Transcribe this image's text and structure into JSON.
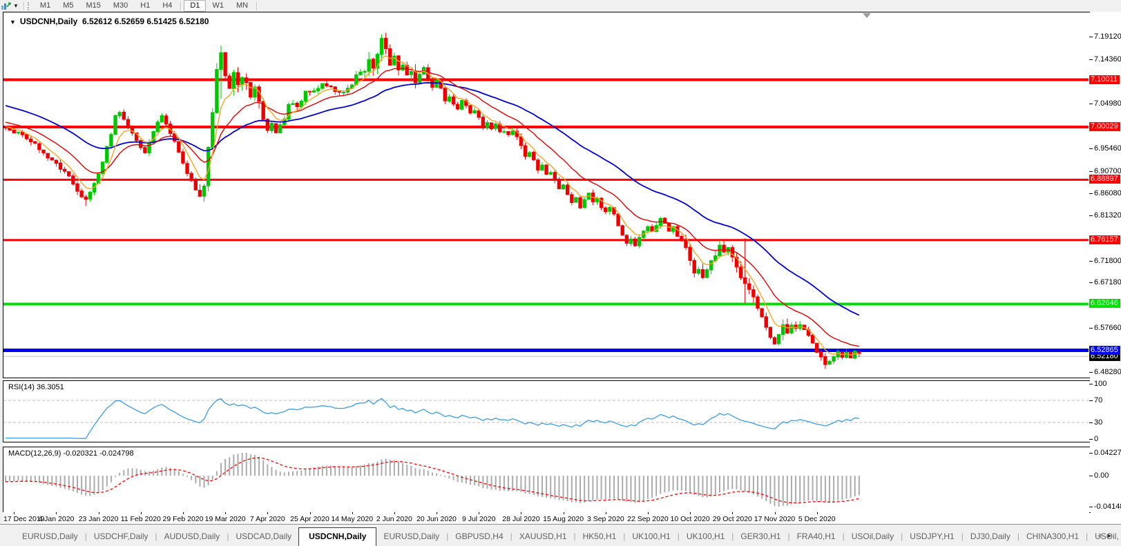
{
  "toolbar": {
    "periods": [
      "M1",
      "M5",
      "M15",
      "M30",
      "H1",
      "H4",
      "D1",
      "W1",
      "MN"
    ],
    "active_period": "D1",
    "left_icon": "chart-periods-icon"
  },
  "chart": {
    "title_symbol": "USDCNH,Daily",
    "title_ohlc": "6.52612 6.52659 6.51425 6.52180",
    "price_axis_ticks": [
      "7.19120",
      "7.14360",
      "7.04980",
      "6.95460",
      "6.90700",
      "6.86080",
      "6.81320",
      "6.71800",
      "6.67180",
      "6.57660",
      "6.48280"
    ],
    "hlines": [
      {
        "value": 7.10011,
        "label": "7.10011",
        "color": "#ff0000",
        "width": 4
      },
      {
        "value": 7.00029,
        "label": "7.00029",
        "color": "#ff0000",
        "width": 4
      },
      {
        "value": 6.88897,
        "label": "6.88897",
        "color": "#ff0000",
        "width": 3
      },
      {
        "value": 6.76157,
        "label": "6.76157",
        "color": "#ff0000",
        "width": 3
      },
      {
        "value": 6.62646,
        "label": "6.62646",
        "color": "#00dd00",
        "width": 4
      },
      {
        "value": 6.52865,
        "label": "6.52865",
        "color": "#0000f0",
        "width": 5
      }
    ],
    "current_price": {
      "value": 6.5218,
      "label": "6.52180",
      "line_color": "#c0c0c0",
      "label_bg": "#000000"
    },
    "colors": {
      "candle_up": "#00c800",
      "candle_down": "#ec0000",
      "ma_fast": "#f5a623",
      "ma_mid": "#e00000",
      "ma_slow": "#0000cd"
    }
  },
  "rsi": {
    "label": "RSI(14) 36.3051",
    "value": 36.3051,
    "axis_ticks": [
      "100",
      "70",
      "30",
      "0"
    ],
    "axis_values": [
      100,
      70,
      30,
      0
    ],
    "dashed_levels": [
      70,
      30
    ],
    "line_color": "#3c9be0"
  },
  "macd": {
    "label": "MACD(12,26,9) -0.020321 -0.024798",
    "main_value": -0.020321,
    "signal_value": -0.024798,
    "axis_ticks": [
      "0.042275",
      "0.00",
      "-0.04148"
    ],
    "histogram_color": "#ababab",
    "signal_color": "#ff0000"
  },
  "dates": [
    "17 Dec 2019",
    "4 Jan 2020",
    "23 Jan 2020",
    "11 Feb 2020",
    "29 Feb 2020",
    "19 Mar 2020",
    "7 Apr 2020",
    "25 Apr 2020",
    "14 May 2020",
    "2 Jun 2020",
    "20 Jun 2020",
    "9 Jul 2020",
    "28 Jul 2020",
    "15 Aug 2020",
    "3 Sep 2020",
    "22 Sep 2020",
    "10 Oct 2020",
    "29 Oct 2020",
    "17 Nov 2020",
    "5 Dec 2020"
  ],
  "tabs": {
    "items": [
      "EURUSD,Daily",
      "USDCHF,Daily",
      "AUDUSD,Daily",
      "USDCAD,Daily",
      "USDCNH,Daily",
      "EURUSD,Daily",
      "GBPUSD,H4",
      "XAUUSD,H1",
      "HK50,H1",
      "UK100,H1",
      "UK100,H1",
      "GER30,H1",
      "FRA40,H1",
      "USOil,Daily",
      "USDJPY,H1",
      "DJ30,Daily",
      "CHINA300,H1",
      "USOil,"
    ],
    "active_index": 4
  },
  "chart_data": {
    "type": "candlestick",
    "symbol": "USDCNH",
    "timeframe": "Daily",
    "last_bar": {
      "open": 6.52612,
      "high": 6.52659,
      "low": 6.51425,
      "close": 6.5218
    },
    "bars": 203,
    "y_axis": {
      "top": 7.1912,
      "bottom": 6.4828
    },
    "close_anchors": [
      [
        0,
        6.998
      ],
      [
        2,
        6.992
      ],
      [
        4,
        6.98
      ],
      [
        6,
        6.972
      ],
      [
        8,
        6.955
      ],
      [
        10,
        6.938
      ],
      [
        12,
        6.92
      ],
      [
        14,
        6.905
      ],
      [
        16,
        6.88
      ],
      [
        18,
        6.855
      ],
      [
        19,
        6.843
      ],
      [
        20,
        6.86
      ],
      [
        22,
        6.9
      ],
      [
        24,
        6.955
      ],
      [
        26,
        7.02
      ],
      [
        27,
        7.028
      ],
      [
        29,
        7.0
      ],
      [
        31,
        6.968
      ],
      [
        33,
        6.948
      ],
      [
        35,
        6.995
      ],
      [
        37,
        7.028
      ],
      [
        39,
        6.988
      ],
      [
        41,
        6.948
      ],
      [
        43,
        6.905
      ],
      [
        45,
        6.868
      ],
      [
        46,
        6.853
      ],
      [
        47,
        6.88
      ],
      [
        48,
        6.96
      ],
      [
        49,
        7.03
      ],
      [
        50,
        7.12
      ],
      [
        51,
        7.158
      ],
      [
        52,
        7.108
      ],
      [
        53,
        7.085
      ],
      [
        54,
        7.118
      ],
      [
        55,
        7.09
      ],
      [
        56,
        7.108
      ],
      [
        57,
        7.093
      ],
      [
        58,
        7.06
      ],
      [
        59,
        7.083
      ],
      [
        60,
        7.053
      ],
      [
        61,
        7.02
      ],
      [
        62,
        6.995
      ],
      [
        63,
        7.01
      ],
      [
        64,
        6.985
      ],
      [
        66,
        7.02
      ],
      [
        67,
        7.048
      ],
      [
        69,
        7.043
      ],
      [
        71,
        7.073
      ],
      [
        73,
        7.073
      ],
      [
        75,
        7.093
      ],
      [
        77,
        7.088
      ],
      [
        79,
        7.07
      ],
      [
        81,
        7.078
      ],
      [
        83,
        7.108
      ],
      [
        85,
        7.118
      ],
      [
        86,
        7.143
      ],
      [
        87,
        7.128
      ],
      [
        88,
        7.153
      ],
      [
        89,
        7.188
      ],
      [
        90,
        7.163
      ],
      [
        91,
        7.13
      ],
      [
        92,
        7.148
      ],
      [
        93,
        7.118
      ],
      [
        94,
        7.133
      ],
      [
        95,
        7.108
      ],
      [
        96,
        7.118
      ],
      [
        97,
        7.093
      ],
      [
        98,
        7.108
      ],
      [
        99,
        7.123
      ],
      [
        100,
        7.103
      ],
      [
        101,
        7.088
      ],
      [
        102,
        7.098
      ],
      [
        103,
        7.078
      ],
      [
        104,
        7.058
      ],
      [
        105,
        7.068
      ],
      [
        106,
        7.053
      ],
      [
        107,
        7.038
      ],
      [
        108,
        7.058
      ],
      [
        109,
        7.043
      ],
      [
        110,
        7.028
      ],
      [
        111,
        7.038
      ],
      [
        112,
        7.018
      ],
      [
        113,
        6.998
      ],
      [
        114,
        7.008
      ],
      [
        115,
        6.993
      ],
      [
        116,
        7.003
      ],
      [
        117,
        6.988
      ],
      [
        118,
        6.993
      ],
      [
        119,
        6.983
      ],
      [
        120,
        6.993
      ],
      [
        121,
        6.978
      ],
      [
        122,
        6.958
      ],
      [
        123,
        6.938
      ],
      [
        124,
        6.948
      ],
      [
        125,
        6.928
      ],
      [
        126,
        6.908
      ],
      [
        127,
        6.918
      ],
      [
        128,
        6.898
      ],
      [
        129,
        6.908
      ],
      [
        130,
        6.888
      ],
      [
        131,
        6.868
      ],
      [
        132,
        6.878
      ],
      [
        133,
        6.858
      ],
      [
        134,
        6.838
      ],
      [
        135,
        6.848
      ],
      [
        136,
        6.833
      ],
      [
        137,
        6.848
      ],
      [
        138,
        6.863
      ],
      [
        139,
        6.843
      ],
      [
        140,
        6.853
      ],
      [
        141,
        6.833
      ],
      [
        142,
        6.818
      ],
      [
        143,
        6.833
      ],
      [
        144,
        6.813
      ],
      [
        145,
        6.793
      ],
      [
        146,
        6.773
      ],
      [
        147,
        6.753
      ],
      [
        148,
        6.768
      ],
      [
        149,
        6.748
      ],
      [
        150,
        6.763
      ],
      [
        151,
        6.783
      ],
      [
        152,
        6.793
      ],
      [
        153,
        6.778
      ],
      [
        154,
        6.793
      ],
      [
        155,
        6.808
      ],
      [
        156,
        6.793
      ],
      [
        157,
        6.778
      ],
      [
        158,
        6.788
      ],
      [
        159,
        6.773
      ],
      [
        160,
        6.758
      ],
      [
        161,
        6.743
      ],
      [
        162,
        6.718
      ],
      [
        163,
        6.688
      ],
      [
        164,
        6.698
      ],
      [
        165,
        6.683
      ],
      [
        166,
        6.698
      ],
      [
        167,
        6.718
      ],
      [
        168,
        6.733
      ],
      [
        169,
        6.748
      ],
      [
        170,
        6.733
      ],
      [
        171,
        6.748
      ],
      [
        172,
        6.728
      ],
      [
        173,
        6.703
      ],
      [
        174,
        6.678
      ],
      [
        175,
        6.668
      ],
      [
        176,
        6.653
      ],
      [
        177,
        6.638
      ],
      [
        178,
        6.618
      ],
      [
        179,
        6.598
      ],
      [
        180,
        6.578
      ],
      [
        181,
        6.558
      ],
      [
        182,
        6.543
      ],
      [
        183,
        6.563
      ],
      [
        184,
        6.578
      ],
      [
        185,
        6.568
      ],
      [
        186,
        6.583
      ],
      [
        187,
        6.573
      ],
      [
        188,
        6.583
      ],
      [
        189,
        6.568
      ],
      [
        190,
        6.558
      ],
      [
        191,
        6.543
      ],
      [
        192,
        6.528
      ],
      [
        193,
        6.513
      ],
      [
        194,
        6.498
      ],
      [
        195,
        6.503
      ],
      [
        196,
        6.518
      ],
      [
        197,
        6.526
      ],
      [
        198,
        6.518
      ],
      [
        199,
        6.526
      ],
      [
        200,
        6.514
      ],
      [
        201,
        6.524
      ],
      [
        202,
        6.5218
      ]
    ],
    "wick_overrides": {
      "19": {
        "low": 6.8335
      },
      "50": {
        "high": 7.135,
        "low": 7.028
      },
      "51": {
        "high": 7.172,
        "low": 7.06
      },
      "89": {
        "high": 7.1955
      },
      "175": {
        "high": 6.7655,
        "low": 6.628
      },
      "194": {
        "low": 6.4895
      }
    },
    "indicators": [
      {
        "name": "MA fast",
        "type": "ema",
        "period": 6,
        "color": "#f5a623"
      },
      {
        "name": "MA mid",
        "type": "ema",
        "period": 16,
        "color": "#e00000"
      },
      {
        "name": "MA slow",
        "type": "ema",
        "period": 40,
        "color": "#0000cd"
      },
      {
        "name": "RSI",
        "period": 14,
        "value": 36.3051
      },
      {
        "name": "MACD",
        "fast": 12,
        "slow": 26,
        "signal": 9,
        "values": [
          -0.020321,
          -0.024798
        ]
      }
    ]
  }
}
